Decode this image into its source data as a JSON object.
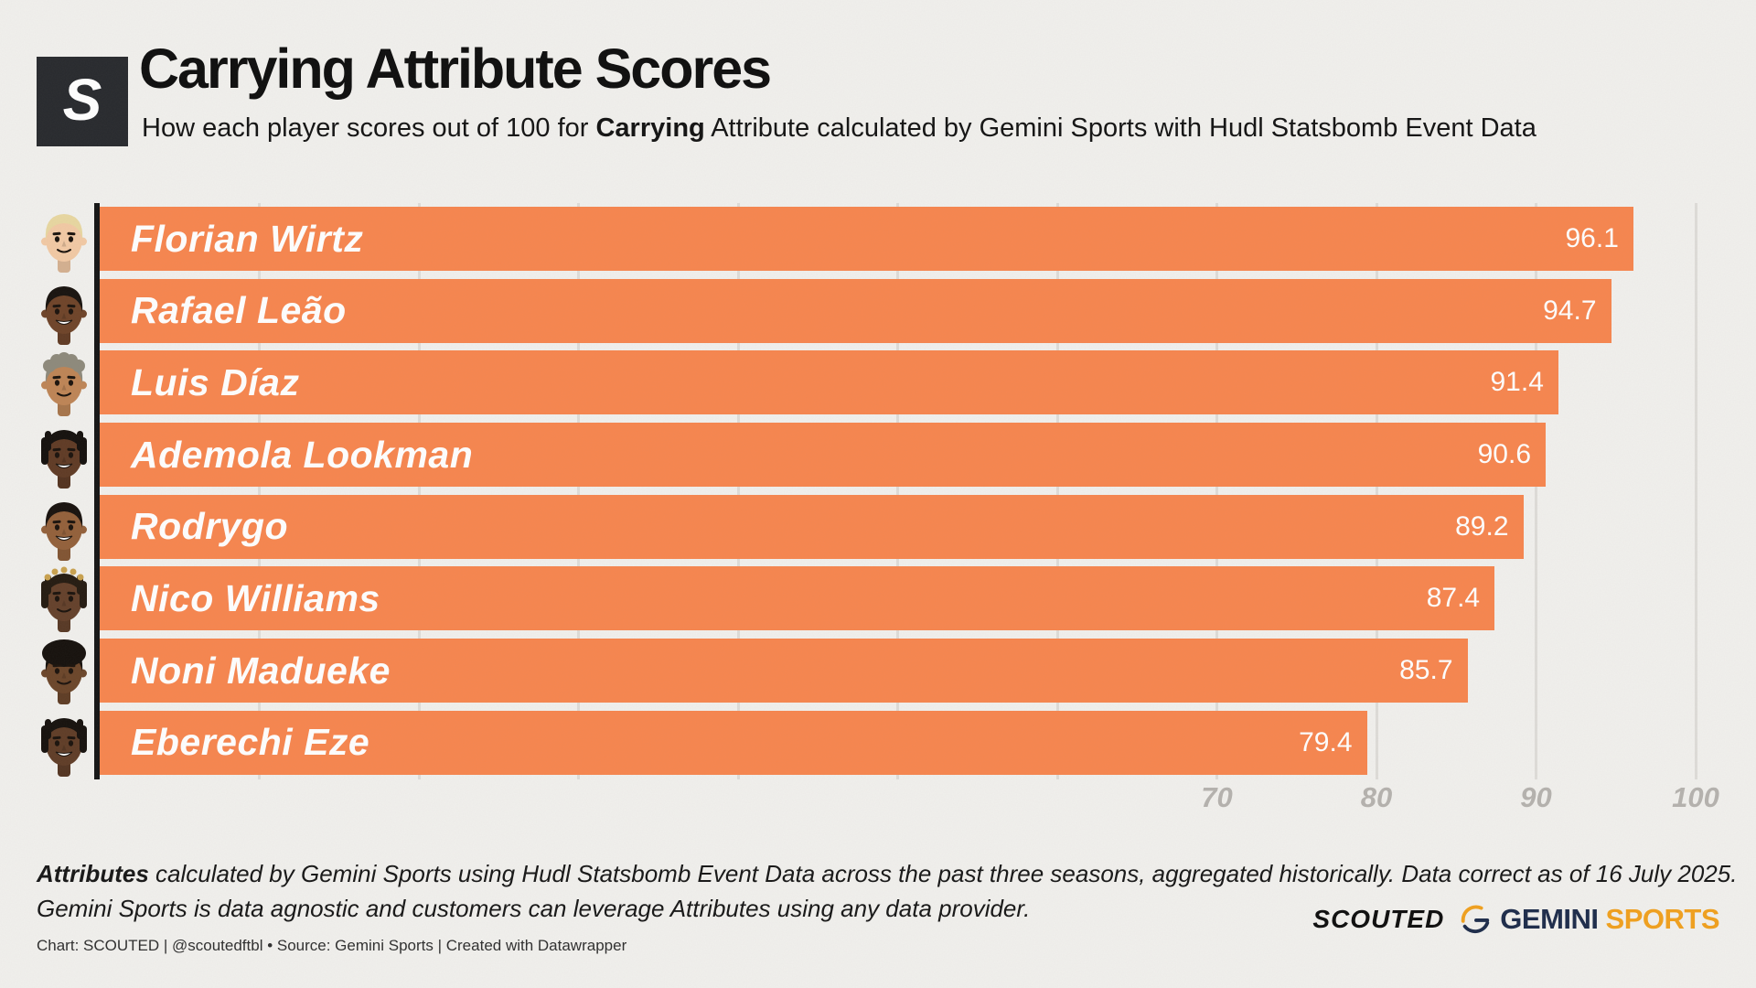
{
  "header": {
    "logo_letter": "S",
    "title": "Carrying Attribute Scores",
    "subtitle_pre": "How each player scores out of 100 for ",
    "subtitle_bold": "Carrying",
    "subtitle_post": " Attribute calculated by Gemini Sports with Hudl Statsbomb Event Data"
  },
  "chart_data": {
    "type": "bar",
    "orientation": "horizontal",
    "title": "Carrying Attribute Scores",
    "categories": [
      "Florian Wirtz",
      "Rafael Leão",
      "Luis Díaz",
      "Ademola Lookman",
      "Rodrygo",
      "Nico Williams",
      "Noni Madueke",
      "Eberechi Eze"
    ],
    "values": [
      96.1,
      94.7,
      91.4,
      90.6,
      89.2,
      87.4,
      85.7,
      79.4
    ],
    "xlabel": "",
    "ylabel": "",
    "xlim": [
      0,
      100
    ],
    "x_ticks": [
      70,
      80,
      90,
      100
    ],
    "grid_step": 10,
    "grid": true,
    "legend": false,
    "bar_color": "#F7854E",
    "grid_color": "#DEDCD8",
    "axis_line_color": "#141414",
    "tick_label_color": "#B5B2AE",
    "value_label_color": "#FFFFFF",
    "players": [
      {
        "name": "Florian Wirtz",
        "value": 96.1,
        "avatar": {
          "skin": "#F2C9A4",
          "hair": "#E8D7A0",
          "style": "short",
          "smile": false
        }
      },
      {
        "name": "Rafael Leão",
        "value": 94.7,
        "avatar": {
          "skin": "#6E4328",
          "hair": "#17120E",
          "style": "short",
          "smile": true
        }
      },
      {
        "name": "Luis Díaz",
        "value": 91.4,
        "avatar": {
          "skin": "#BE8455",
          "hair": "#8D897B",
          "style": "curly",
          "smile": false
        }
      },
      {
        "name": "Ademola Lookman",
        "value": 90.6,
        "avatar": {
          "skin": "#5F3A24",
          "hair": "#130F0C",
          "style": "dreads",
          "smile": true
        }
      },
      {
        "name": "Rodrygo",
        "value": 89.2,
        "avatar": {
          "skin": "#93603A",
          "hair": "#17110D",
          "style": "short",
          "smile": true
        }
      },
      {
        "name": "Nico Williams",
        "value": 87.4,
        "avatar": {
          "skin": "#64402A",
          "hair": "#241A10",
          "tip": "#C9A14E",
          "style": "dreads",
          "smile": false
        }
      },
      {
        "name": "Noni Madueke",
        "value": 85.7,
        "avatar": {
          "skin": "#6B4529",
          "hair": "#15100C",
          "style": "afro",
          "smile": false
        }
      },
      {
        "name": "Eberechi Eze",
        "value": 79.4,
        "avatar": {
          "skin": "#5F3C26",
          "hair": "#15100C",
          "style": "dreads",
          "smile": true
        }
      }
    ]
  },
  "footer": {
    "note_bold": "Attributes",
    "note_line1": " calculated by Gemini Sports using Hudl Statsbomb Event Data across the past three seasons, aggregated historically. Data correct as of 16 July 2025.",
    "note_line2": "Gemini Sports is data agnostic and customers can leverage Attributes using any data provider.",
    "attribution": "Chart: SCOUTED | @scoutedftbl • Source: Gemini Sports | Created with Datawrapper",
    "brand_scouted": "SCOUTED",
    "brand_gemini": "GEMINI",
    "brand_sports": "SPORTS"
  },
  "colors": {
    "background": "#F1F0ED",
    "bar_orange": "#F7854E",
    "logo_box": "#27292D",
    "navy": "#1C2B4A",
    "gold": "#F1A01D",
    "text_dark": "#0D0D0D"
  }
}
